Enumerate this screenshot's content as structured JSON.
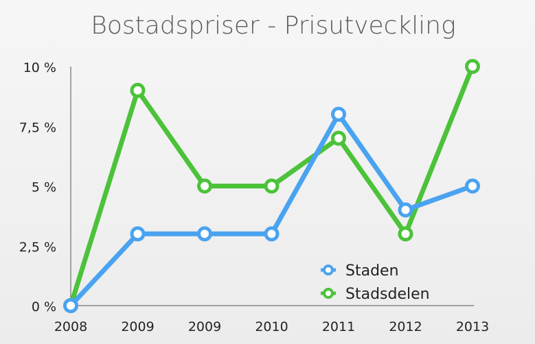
{
  "chart_data": {
    "type": "line",
    "title": "Bostadspriser - Prisutveckling",
    "categories": [
      "2008",
      "2009",
      "2009",
      "2010",
      "2011",
      "2012",
      "2013"
    ],
    "y_ticks": [
      "0 %",
      "2,5 %",
      "5 %",
      "7,5 %",
      "10 %"
    ],
    "y_tick_values": [
      0,
      2.5,
      5,
      7.5,
      10
    ],
    "ylim": [
      0,
      10
    ],
    "grid": false,
    "legend_position": "bottom-right",
    "series": [
      {
        "name": "Staden",
        "color": "#4aa3f0",
        "values": [
          0,
          3,
          3,
          3,
          8,
          4,
          5
        ]
      },
      {
        "name": "Stadsdelen",
        "color": "#4cc23a",
        "values": [
          0,
          9,
          5,
          5,
          7,
          3,
          10
        ]
      }
    ]
  }
}
